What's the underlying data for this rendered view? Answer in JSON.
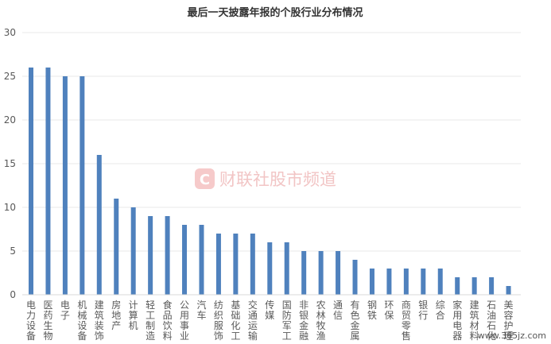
{
  "chart_data": {
    "type": "bar",
    "title": "最后一天披露年报的个股行业分布情况",
    "xlabel": "",
    "ylabel": "",
    "ylim": [
      0,
      30
    ],
    "yticks": [
      0,
      5,
      10,
      15,
      20,
      25,
      30
    ],
    "grid": true,
    "legend": "none",
    "bar_color": "#4f81bd",
    "categories": [
      "电力设备",
      "医药生物",
      "电子",
      "机械设备",
      "建筑装饰",
      "房地产",
      "计算机",
      "轻工制造",
      "食品饮料",
      "公用事业",
      "汽车",
      "纺织服饰",
      "基础化工",
      "交通运输",
      "传媒",
      "国防军工",
      "非银金融",
      "农林牧渔",
      "通信",
      "有色金属",
      "钢铁",
      "环保",
      "商贸零售",
      "银行",
      "综合",
      "家用电器",
      "建筑材料",
      "石油石化",
      "美容护理"
    ],
    "values": [
      26,
      26,
      25,
      25,
      16,
      11,
      10,
      9,
      9,
      8,
      8,
      7,
      7,
      7,
      6,
      6,
      5,
      5,
      5,
      4,
      3,
      3,
      3,
      3,
      3,
      2,
      2,
      2,
      1
    ]
  },
  "watermark": {
    "text": "财联社股市频道",
    "logo_letter": "C"
  },
  "site": "www.365jz.com"
}
